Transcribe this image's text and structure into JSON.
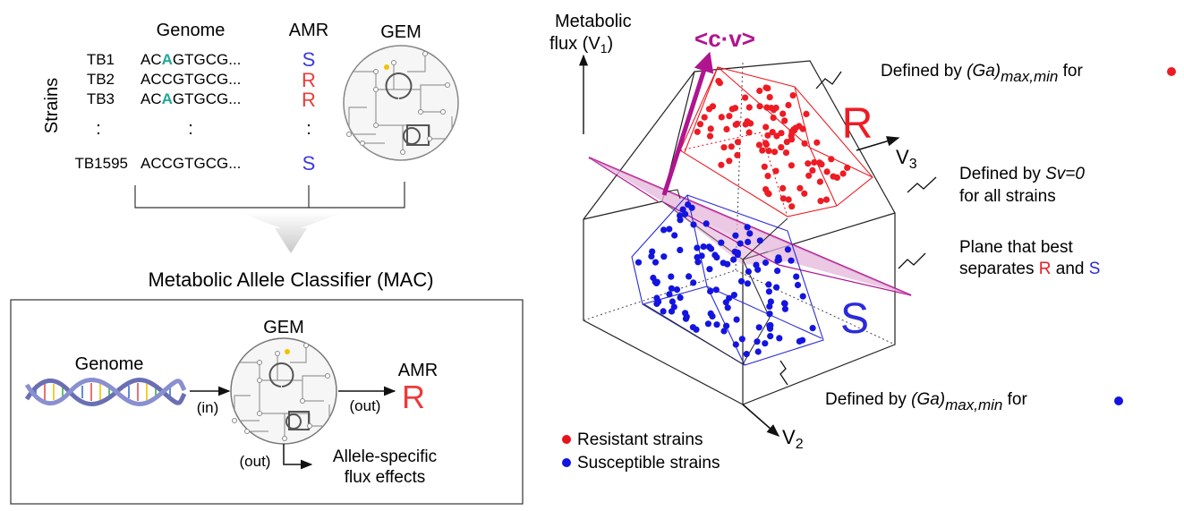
{
  "left": {
    "headers": {
      "genome": "Genome",
      "amr": "AMR",
      "gem": "GEM",
      "strains": "Strains"
    },
    "rows": [
      {
        "id": "TB1",
        "seq_pre": "AC",
        "seq_hl": "A",
        "seq_post": "GTGCG...",
        "amr": "S"
      },
      {
        "id": "TB2",
        "seq_pre": "ACC",
        "seq_hl": "",
        "seq_post": "GTGCG...",
        "amr": "R"
      },
      {
        "id": "TB3",
        "seq_pre": "AC",
        "seq_hl": "A",
        "seq_post": "GTGCG...",
        "amr": "R"
      },
      {
        "id": "TB1595",
        "seq_pre": "ACC",
        "seq_hl": "",
        "seq_post": "GTGCG...",
        "amr": "S"
      }
    ],
    "vdots": ":",
    "mac_title": "Metabolic Allele Classifier (MAC)",
    "mac": {
      "genome": "Genome",
      "gem": "GEM",
      "amr": "AMR",
      "amr_value": "R",
      "in": "(in)",
      "out1": "(out)",
      "out2": "(out)",
      "allele_line1": "Allele-specific",
      "allele_line2": "flux effects"
    }
  },
  "right": {
    "y_label_1": "Metabolic",
    "y_label_2": "flux (V",
    "y_label_sub": "1",
    "y_label_close": ")",
    "cv": "<c·v>",
    "R": "R",
    "S": "S",
    "v3": "V",
    "v3_sub": "3",
    "v2": "V",
    "v2_sub": "2",
    "defined_R_pre": "Defined by ",
    "defined_R_it": "(Ga)",
    "defined_R_sub": "max,min",
    "defined_R_post": " for",
    "defined_sv_1_pre": "Defined by ",
    "defined_sv_1_it": "Sv=0",
    "defined_sv_2": "for all strains",
    "plane_1": "Plane that best",
    "plane_2_pre": "separates ",
    "plane_2_R": "R",
    "plane_2_mid": " and ",
    "plane_2_S": "S",
    "defined_S_pre": "Defined by ",
    "defined_S_it": "(Ga)",
    "defined_S_sub": "max,min",
    "defined_S_post": " for",
    "legend": [
      {
        "label": "Resistant strains",
        "color": "#e8121b"
      },
      {
        "label": "Susceptible strains",
        "color": "#1414e0"
      }
    ]
  },
  "colors": {
    "red": "#ed1c24",
    "blue": "#2b2bd9",
    "magenta": "#b0158f",
    "teal": "#1fa89a"
  }
}
